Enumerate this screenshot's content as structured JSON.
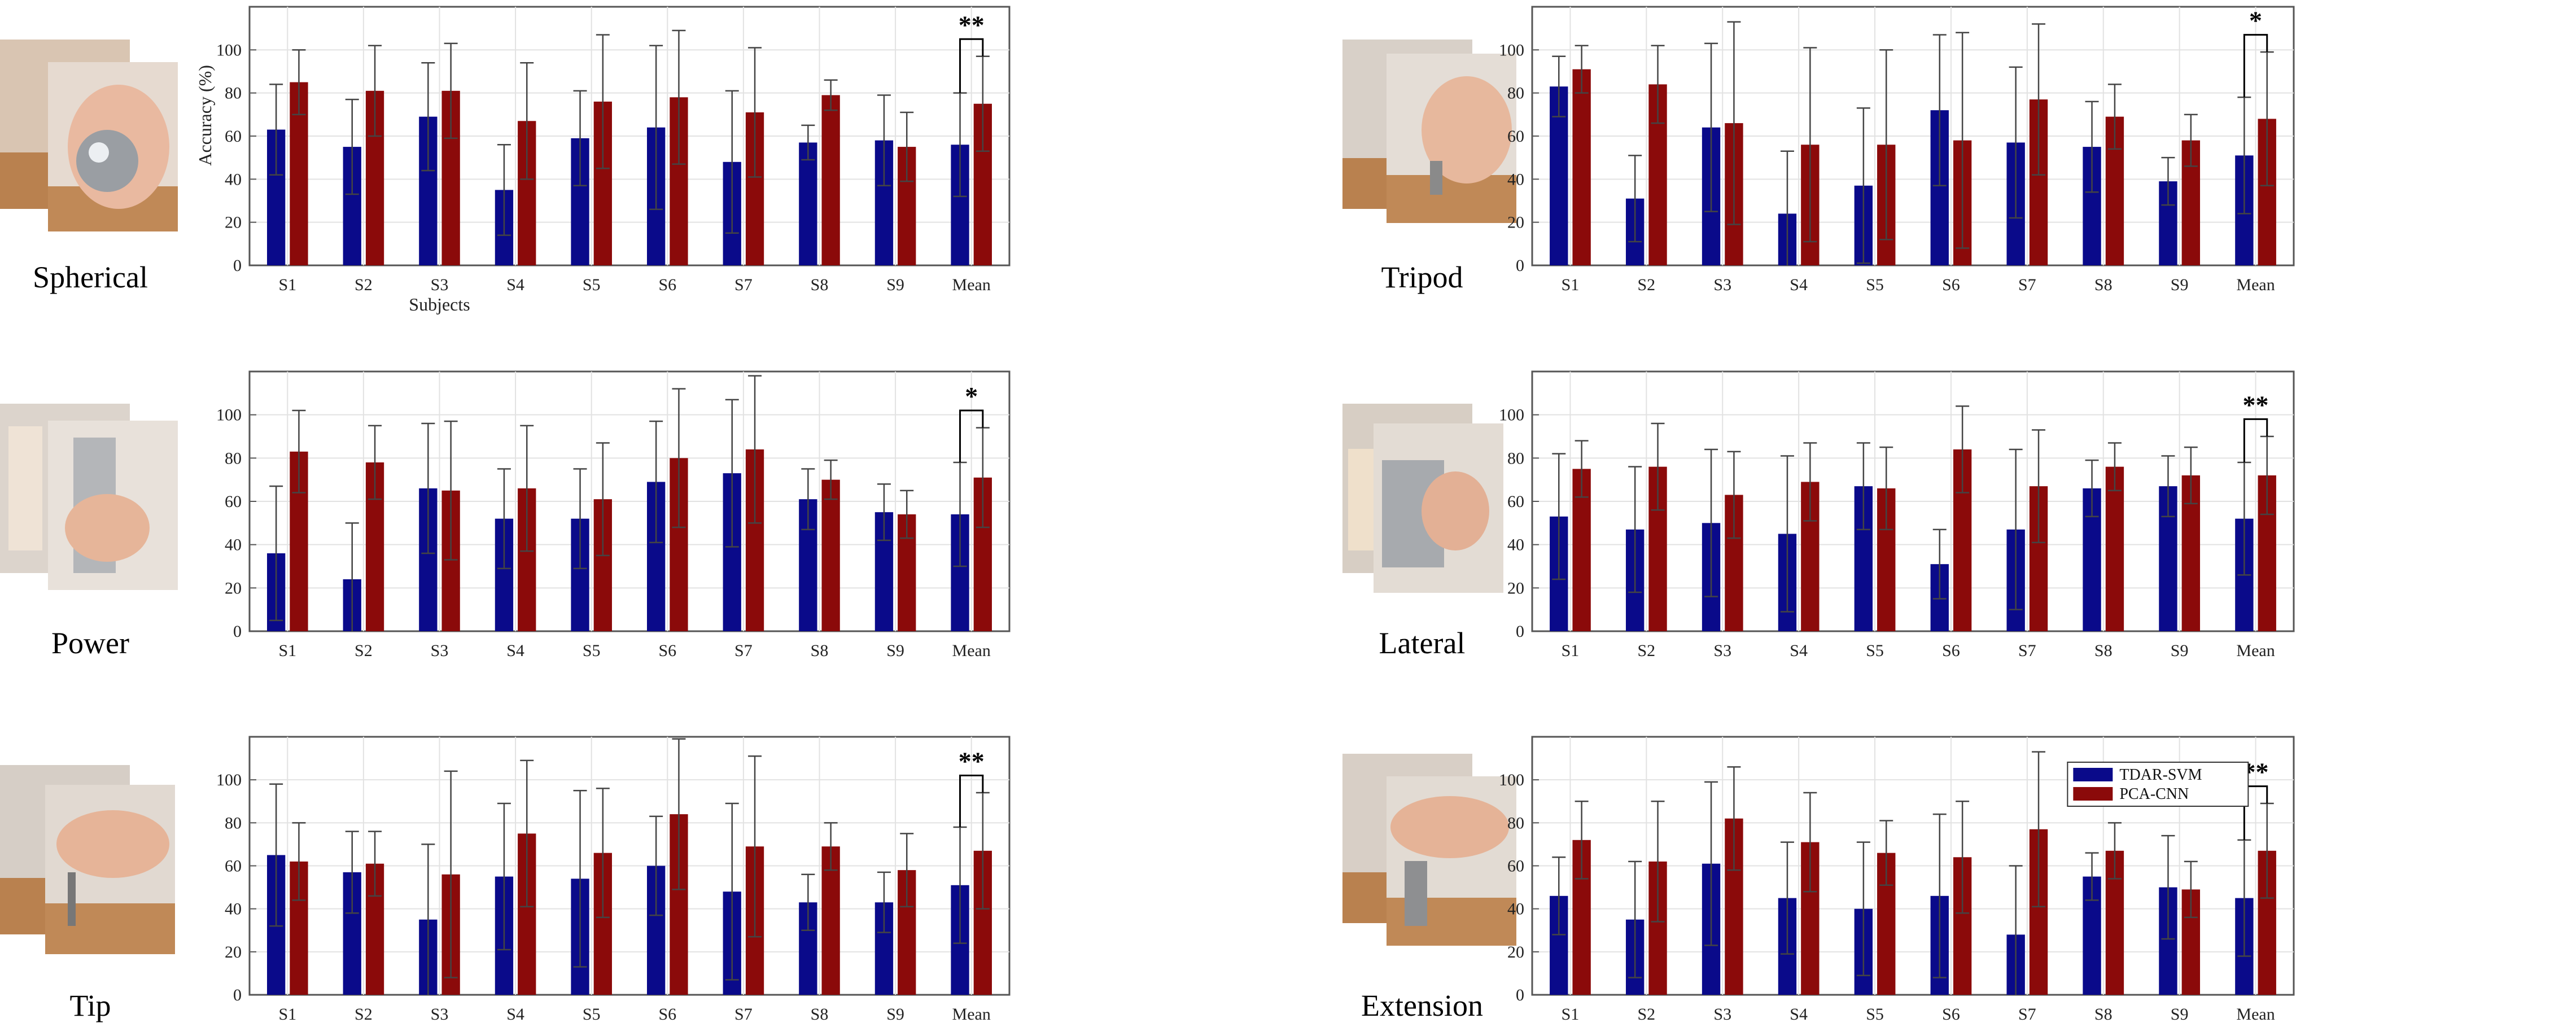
{
  "figure": {
    "colors": {
      "tdar_svm": "#0a0a8a",
      "pca_cnn": "#8b0a0a",
      "axis": "#555555",
      "grid": "#e2e2e2",
      "error": "#444444"
    },
    "legend": [
      "TDAR-SVM",
      "PCA-CNN"
    ],
    "legend_position": "top-right of Extension panel"
  },
  "chart_data": [
    {
      "type": "bar",
      "grip": "Spherical",
      "categories": [
        "S1",
        "S2",
        "S3",
        "S4",
        "S5",
        "S6",
        "S7",
        "S8",
        "S9",
        "Mean"
      ],
      "ylabel": "Accuracy (%)",
      "xlabel": "Subjects",
      "ylim": [
        0,
        120
      ],
      "yticks": [
        0,
        20,
        40,
        60,
        80,
        100
      ],
      "series": [
        {
          "name": "TDAR-SVM",
          "values": [
            63,
            55,
            69,
            35,
            59,
            64,
            48,
            57,
            58,
            56
          ],
          "errors": [
            21,
            22,
            25,
            21,
            22,
            38,
            33,
            8,
            21,
            24
          ]
        },
        {
          "name": "PCA-CNN",
          "values": [
            85,
            81,
            81,
            67,
            76,
            78,
            71,
            79,
            55,
            75
          ],
          "errors": [
            15,
            21,
            22,
            27,
            31,
            31,
            30,
            7,
            16,
            22
          ]
        }
      ],
      "significance": "**"
    },
    {
      "type": "bar",
      "grip": "Tripod",
      "categories": [
        "S1",
        "S2",
        "S3",
        "S4",
        "S5",
        "S6",
        "S7",
        "S8",
        "S9",
        "Mean"
      ],
      "ylabel": "",
      "xlabel": "",
      "ylim": [
        0,
        120
      ],
      "yticks": [
        0,
        20,
        40,
        60,
        80,
        100
      ],
      "series": [
        {
          "name": "TDAR-SVM",
          "values": [
            83,
            31,
            64,
            24,
            37,
            72,
            57,
            55,
            39,
            51
          ],
          "errors": [
            14,
            20,
            39,
            29,
            36,
            35,
            35,
            21,
            11,
            27
          ]
        },
        {
          "name": "PCA-CNN",
          "values": [
            91,
            84,
            66,
            56,
            56,
            58,
            77,
            69,
            58,
            68
          ],
          "errors": [
            11,
            18,
            47,
            45,
            44,
            50,
            35,
            15,
            12,
            31
          ]
        }
      ],
      "significance": "*"
    },
    {
      "type": "bar",
      "grip": "Power",
      "categories": [
        "S1",
        "S2",
        "S3",
        "S4",
        "S5",
        "S6",
        "S7",
        "S8",
        "S9",
        "Mean"
      ],
      "ylabel": "",
      "xlabel": "",
      "ylim": [
        0,
        120
      ],
      "yticks": [
        0,
        20,
        40,
        60,
        80,
        100
      ],
      "series": [
        {
          "name": "TDAR-SVM",
          "values": [
            36,
            24,
            66,
            52,
            52,
            69,
            73,
            61,
            55,
            54
          ],
          "errors": [
            31,
            26,
            30,
            23,
            23,
            28,
            34,
            14,
            13,
            24
          ]
        },
        {
          "name": "PCA-CNN",
          "values": [
            83,
            78,
            65,
            66,
            61,
            80,
            84,
            70,
            54,
            71
          ],
          "errors": [
            19,
            17,
            32,
            29,
            26,
            32,
            34,
            9,
            11,
            23
          ]
        }
      ],
      "significance": "*"
    },
    {
      "type": "bar",
      "grip": "Lateral",
      "categories": [
        "S1",
        "S2",
        "S3",
        "S4",
        "S5",
        "S6",
        "S7",
        "S8",
        "S9",
        "Mean"
      ],
      "ylabel": "",
      "xlabel": "",
      "ylim": [
        0,
        120
      ],
      "yticks": [
        0,
        20,
        40,
        60,
        80,
        100
      ],
      "series": [
        {
          "name": "TDAR-SVM",
          "values": [
            53,
            47,
            50,
            45,
            67,
            31,
            47,
            66,
            67,
            52
          ],
          "errors": [
            29,
            29,
            34,
            36,
            20,
            16,
            37,
            13,
            14,
            26
          ]
        },
        {
          "name": "PCA-CNN",
          "values": [
            75,
            76,
            63,
            69,
            66,
            84,
            67,
            76,
            72,
            72
          ],
          "errors": [
            13,
            20,
            20,
            18,
            19,
            20,
            26,
            11,
            13,
            18
          ]
        }
      ],
      "significance": "**"
    },
    {
      "type": "bar",
      "grip": "Tip",
      "categories": [
        "S1",
        "S2",
        "S3",
        "S4",
        "S5",
        "S6",
        "S7",
        "S8",
        "S9",
        "Mean"
      ],
      "ylabel": "",
      "xlabel": "",
      "ylim": [
        0,
        120
      ],
      "yticks": [
        0,
        20,
        40,
        60,
        80,
        100
      ],
      "series": [
        {
          "name": "TDAR-SVM",
          "values": [
            65,
            57,
            35,
            55,
            54,
            60,
            48,
            43,
            43,
            51
          ],
          "errors": [
            33,
            19,
            35,
            34,
            41,
            23,
            41,
            13,
            14,
            27
          ]
        },
        {
          "name": "PCA-CNN",
          "values": [
            62,
            61,
            56,
            75,
            66,
            84,
            69,
            69,
            58,
            67
          ],
          "errors": [
            18,
            15,
            48,
            34,
            30,
            35,
            42,
            11,
            17,
            27
          ]
        }
      ],
      "significance": "**"
    },
    {
      "type": "bar",
      "grip": "Extension",
      "categories": [
        "S1",
        "S2",
        "S3",
        "S4",
        "S5",
        "S6",
        "S7",
        "S8",
        "S9",
        "Mean"
      ],
      "ylabel": "",
      "xlabel": "",
      "ylim": [
        0,
        120
      ],
      "yticks": [
        0,
        20,
        40,
        60,
        80,
        100
      ],
      "series": [
        {
          "name": "TDAR-SVM",
          "values": [
            46,
            35,
            61,
            45,
            40,
            46,
            28,
            55,
            50,
            45
          ],
          "errors": [
            18,
            27,
            38,
            26,
            31,
            38,
            32,
            11,
            24,
            27
          ]
        },
        {
          "name": "PCA-CNN",
          "values": [
            72,
            62,
            82,
            71,
            66,
            64,
            77,
            67,
            49,
            67
          ],
          "errors": [
            18,
            28,
            24,
            23,
            15,
            26,
            36,
            13,
            13,
            22
          ]
        }
      ],
      "significance": "**",
      "legend": true
    }
  ]
}
